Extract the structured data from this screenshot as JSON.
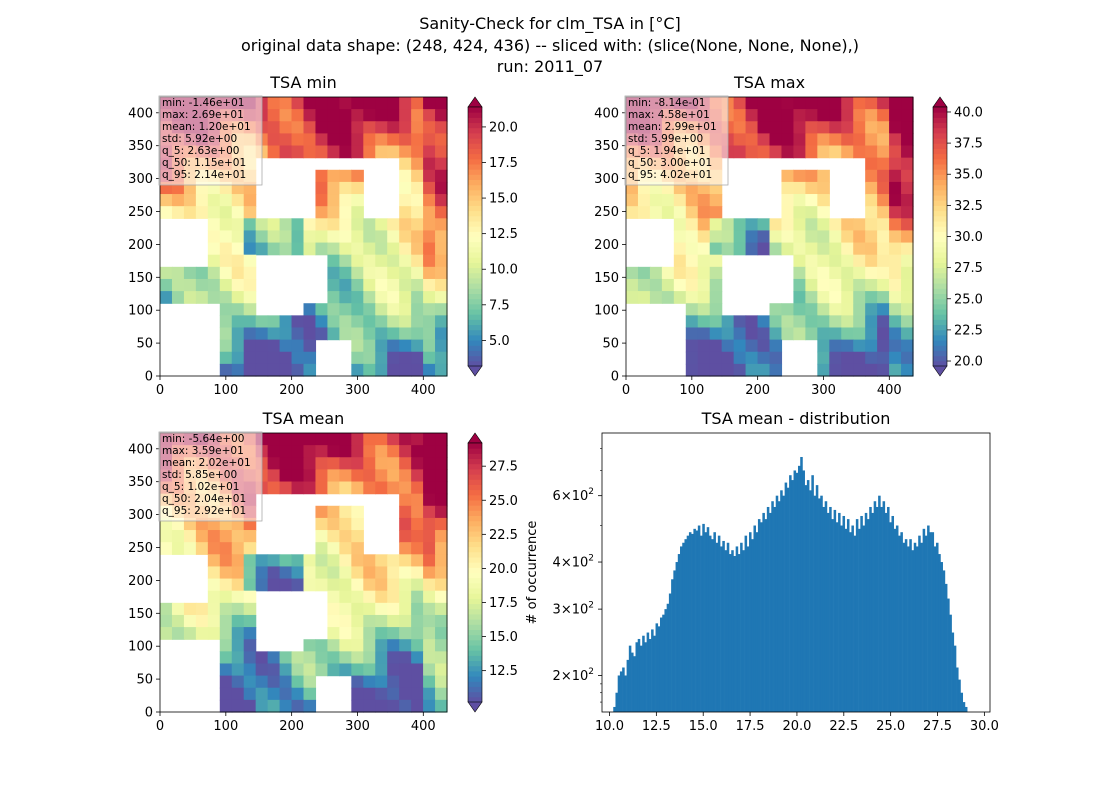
{
  "figure": {
    "title_lines": [
      "Sanity-Check for clm_TSA in [°C]",
      "original data shape: (248, 424, 436) -- sliced with: (slice(None, None, None),)",
      "run: 2011_07"
    ]
  },
  "chart_data": [
    {
      "type": "heatmap",
      "title": "TSA min",
      "x_ticks": [
        "0",
        "100",
        "200",
        "300",
        "400"
      ],
      "y_ticks": [
        "0",
        "50",
        "100",
        "150",
        "200",
        "250",
        "300",
        "350",
        "400"
      ],
      "xlim": [
        0,
        436
      ],
      "ylim": [
        0,
        424
      ],
      "colormap": "Spectral_r",
      "colorbar": {
        "ticks": [
          "5.0",
          "7.5",
          "10.0",
          "12.5",
          "15.0",
          "17.5",
          "20.0"
        ],
        "range": [
          3.2,
          21.4
        ]
      },
      "stats": [
        "min: -1.46e+01",
        "max: 2.69e+01",
        "mean: 1.20e+01",
        "std: 5.92e+00",
        "q_5: 2.63e+00",
        "q_50: 1.15e+01",
        "q_95: 2.14e+01"
      ]
    },
    {
      "type": "heatmap",
      "title": "TSA max",
      "x_ticks": [
        "0",
        "100",
        "200",
        "300",
        "400"
      ],
      "y_ticks": [
        "0",
        "50",
        "100",
        "150",
        "200",
        "250",
        "300",
        "350",
        "400"
      ],
      "xlim": [
        0,
        436
      ],
      "ylim": [
        0,
        424
      ],
      "colormap": "Spectral_r",
      "colorbar": {
        "ticks": [
          "20.0",
          "22.5",
          "25.0",
          "27.5",
          "30.0",
          "32.5",
          "35.0",
          "37.5",
          "40.0"
        ],
        "range": [
          19.6,
          40.4
        ]
      },
      "stats": [
        "min: -8.14e-01",
        "max: 4.58e+01",
        "mean: 2.99e+01",
        "std: 5.99e+00",
        "q_5: 1.94e+01",
        "q_50: 3.00e+01",
        "q_95: 4.02e+01"
      ]
    },
    {
      "type": "heatmap",
      "title": "TSA mean",
      "x_ticks": [
        "0",
        "100",
        "200",
        "300",
        "400"
      ],
      "y_ticks": [
        "0",
        "50",
        "100",
        "150",
        "200",
        "250",
        "300",
        "350",
        "400"
      ],
      "xlim": [
        0,
        436
      ],
      "ylim": [
        0,
        424
      ],
      "colormap": "Spectral_r",
      "colorbar": {
        "ticks": [
          "12.5",
          "15.0",
          "17.5",
          "20.0",
          "22.5",
          "25.0",
          "27.5"
        ],
        "range": [
          10.2,
          29.2
        ]
      },
      "stats": [
        "min: -5.64e+00",
        "max: 3.59e+01",
        "mean: 2.02e+01",
        "std: 5.85e+00",
        "q_5: 1.02e+01",
        "q_50: 2.04e+01",
        "q_95: 2.92e+01"
      ]
    },
    {
      "type": "bar",
      "title": "TSA mean - distribution",
      "ylabel": "# of occurrence",
      "yscale": "log",
      "ylim": [
        160,
        880
      ],
      "xlim": [
        9.6,
        30.3
      ],
      "x_ticks": [
        "10.0",
        "12.5",
        "15.0",
        "17.5",
        "20.0",
        "22.5",
        "25.0",
        "27.5",
        "30.0"
      ],
      "y_ticks": [
        {
          "base": "2",
          "exp": "2",
          "value": 200
        },
        {
          "base": "3",
          "exp": "2",
          "value": 300
        },
        {
          "base": "4",
          "exp": "2",
          "value": 400
        },
        {
          "base": "6",
          "exp": "2",
          "value": 600
        }
      ],
      "bin_start": 10.2,
      "bin_end": 29.2,
      "counts": [
        165,
        180,
        200,
        205,
        210,
        200,
        220,
        240,
        230,
        225,
        245,
        250,
        240,
        255,
        245,
        260,
        250,
        265,
        255,
        275,
        270,
        285,
        290,
        300,
        310,
        330,
        360,
        380,
        400,
        420,
        440,
        450,
        460,
        470,
        480,
        475,
        490,
        485,
        500,
        470,
        505,
        480,
        495,
        470,
        460,
        480,
        450,
        470,
        440,
        455,
        430,
        450,
        420,
        430,
        415,
        440,
        420,
        450,
        430,
        470,
        440,
        480,
        460,
        500,
        480,
        520,
        510,
        540,
        520,
        560,
        540,
        580,
        560,
        600,
        580,
        620,
        600,
        650,
        630,
        680,
        660,
        700,
        690,
        720,
        760,
        700,
        640,
        660,
        620,
        680,
        600,
        640,
        590,
        600,
        560,
        580,
        540,
        560,
        520,
        550,
        510,
        540,
        500,
        530,
        490,
        520,
        480,
        500,
        470,
        520,
        490,
        530,
        500,
        540,
        520,
        560,
        540,
        580,
        560,
        600,
        560,
        580,
        540,
        560,
        510,
        530,
        490,
        500,
        470,
        480,
        450,
        460,
        440,
        460,
        430,
        450,
        440,
        470,
        450,
        490,
        470,
        500,
        480,
        480,
        440,
        450,
        420,
        400,
        380,
        350,
        320,
        290,
        260,
        240,
        210,
        195,
        180,
        170,
        165,
        160
      ]
    }
  ]
}
